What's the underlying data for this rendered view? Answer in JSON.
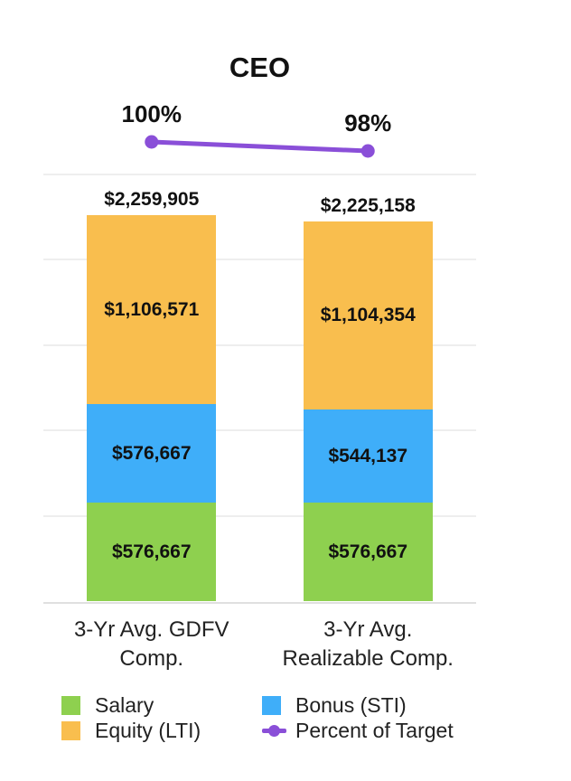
{
  "chart_data": {
    "type": "bar",
    "stacked": true,
    "title": "CEO",
    "categories": [
      "3-Yr Avg. GDFV Comp.",
      "3-Yr Avg. Realizable Comp."
    ],
    "category_lines": [
      [
        "3-Yr Avg. GDFV",
        "Comp."
      ],
      [
        "3-Yr Avg.",
        "Realizable Comp."
      ]
    ],
    "series": [
      {
        "name": "Salary",
        "color": "#8ED04F",
        "values": [
          576667,
          576667
        ],
        "labels": [
          "$576,667",
          "$576,667"
        ]
      },
      {
        "name": "Bonus (STI)",
        "color": "#3FAEF9",
        "values": [
          576667,
          544137
        ],
        "labels": [
          "$576,667",
          "$544,137"
        ]
      },
      {
        "name": "Equity (LTI)",
        "color": "#F9BE4E",
        "values": [
          1106571,
          1104354
        ],
        "labels": [
          "$1,106,571",
          "$1,104,354"
        ]
      }
    ],
    "totals": {
      "values": [
        2259905,
        2225158
      ],
      "labels": [
        "$2,259,905",
        "$2,225,158"
      ]
    },
    "line_series": {
      "name": "Percent of Target",
      "color": "#8A4FD8",
      "values": [
        100,
        98
      ],
      "labels": [
        "100%",
        "98%"
      ]
    },
    "ylabel": "",
    "xlabel": "",
    "ylim": [
      0,
      2500000
    ],
    "gridline_step": 500000,
    "grid": true,
    "legend_position": "bottom"
  },
  "legend": {
    "items": [
      {
        "label": "Salary",
        "swatch": "square",
        "color": "#8ED04F"
      },
      {
        "label": "Bonus (STI)",
        "swatch": "square",
        "color": "#3FAEF9"
      },
      {
        "label": "Equity (LTI)",
        "swatch": "square",
        "color": "#F9BE4E"
      },
      {
        "label": "Percent of Target",
        "swatch": "line-dot",
        "color": "#8A4FD8"
      }
    ]
  }
}
